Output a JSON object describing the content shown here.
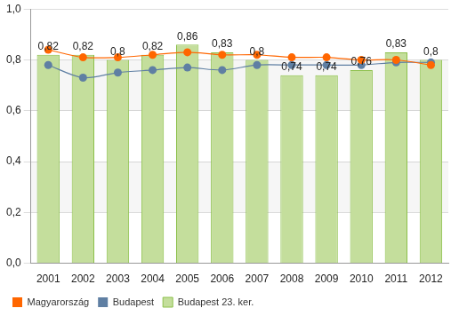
{
  "chart_data": {
    "type": "bar",
    "categories": [
      "2001",
      "2002",
      "2003",
      "2004",
      "2005",
      "2006",
      "2007",
      "2008",
      "2009",
      "2010",
      "2011",
      "2012"
    ],
    "series": [
      {
        "name": "Magyarország",
        "type": "line",
        "color": "#ff6600",
        "marker": "circle",
        "values": [
          0.84,
          0.81,
          0.81,
          0.82,
          0.83,
          0.82,
          0.82,
          0.81,
          0.81,
          0.8,
          0.8,
          0.78
        ]
      },
      {
        "name": "Budapest",
        "type": "line",
        "color": "#5f7fa3",
        "marker": "circle",
        "values": [
          0.78,
          0.73,
          0.75,
          0.76,
          0.77,
          0.76,
          0.78,
          0.78,
          0.78,
          0.78,
          0.79,
          0.79
        ]
      },
      {
        "name": "Budapest 23. ker.",
        "type": "bar",
        "color": "#c4de9c",
        "values": [
          0.82,
          0.82,
          0.8,
          0.82,
          0.86,
          0.83,
          0.8,
          0.74,
          0.74,
          0.76,
          0.83,
          0.8
        ],
        "value_labels": [
          "0,82",
          "0,82",
          "0,8",
          "0,82",
          "0,86",
          "0,83",
          "0,8",
          "0,74",
          "0,74",
          "0,76",
          "0,83",
          "0,8"
        ]
      }
    ],
    "ylim": [
      0,
      1
    ],
    "yticks": [
      {
        "value": 0,
        "label": "0,0"
      },
      {
        "value": 0.2,
        "label": "0,2"
      },
      {
        "value": 0.4,
        "label": "0,4"
      },
      {
        "value": 0.6,
        "label": "0,6"
      },
      {
        "value": 0.8,
        "label": "0,8"
      },
      {
        "value": 1,
        "label": "1,0"
      }
    ],
    "grid": true,
    "legend": "bottom",
    "data_labels": true
  }
}
